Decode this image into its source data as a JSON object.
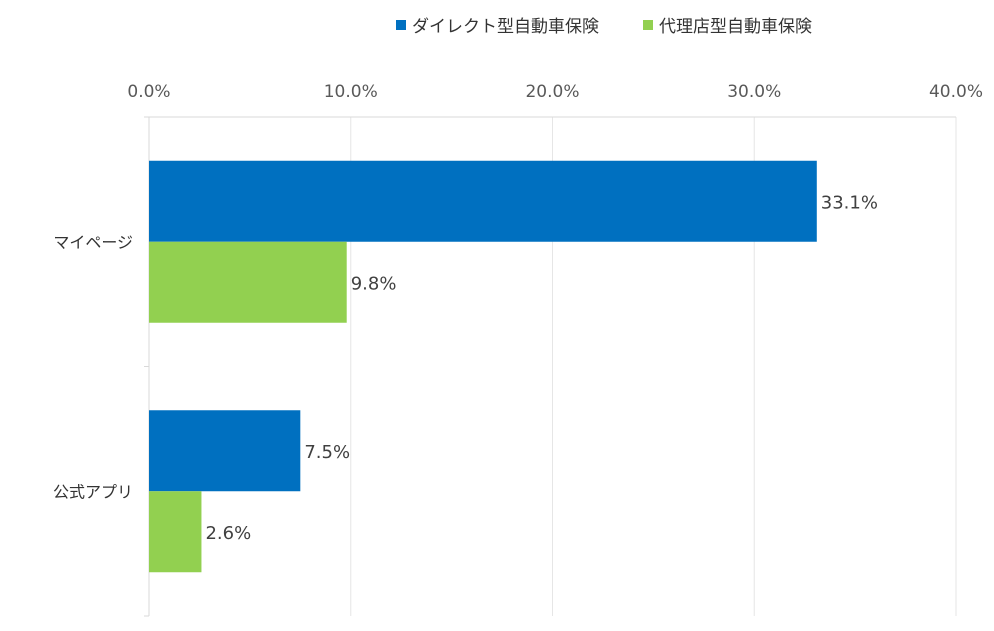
{
  "chart_data": {
    "type": "bar",
    "orientation": "horizontal",
    "categories": [
      "マイページ",
      "公式アプリ"
    ],
    "series": [
      {
        "name": "ダイレクト型自動車保険",
        "values": [
          33.1,
          7.5
        ],
        "color": "#0070c0"
      },
      {
        "name": "代理店型自動車保険",
        "values": [
          9.8,
          2.6
        ],
        "color": "#92d050"
      }
    ],
    "data_labels": [
      [
        "33.1%",
        "7.5%"
      ],
      [
        "9.8%",
        "2.6%"
      ]
    ],
    "xlim": [
      0,
      40
    ],
    "x_ticks": [
      0,
      10,
      20,
      30,
      40
    ],
    "x_tick_labels": [
      "0.0%",
      "10.0%",
      "20.0%",
      "30.0%",
      "40.0%"
    ],
    "x_axis_position": "top",
    "legend_position": "top",
    "grid": true,
    "title": "",
    "xlabel": "",
    "ylabel": ""
  }
}
